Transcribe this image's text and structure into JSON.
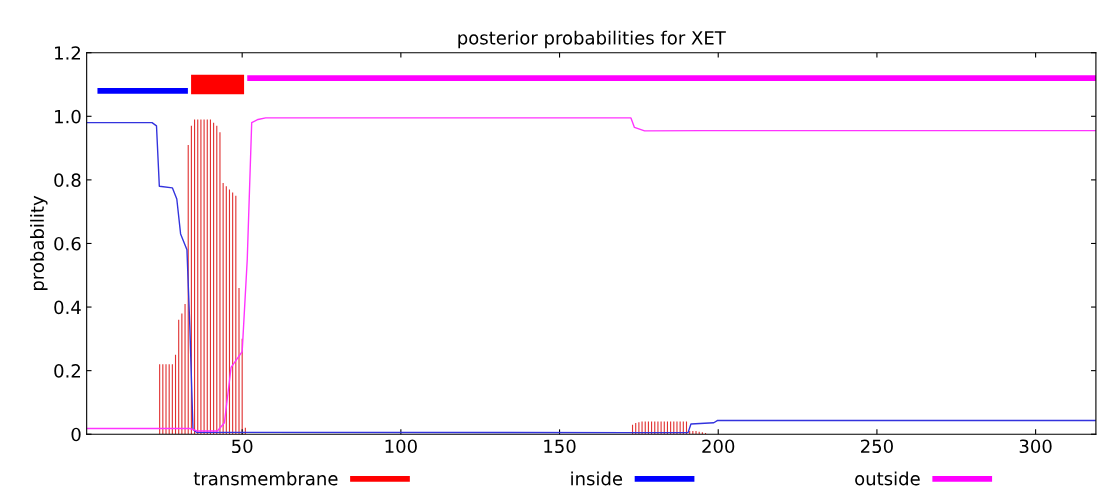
{
  "chart_data": {
    "type": "line",
    "title": "posterior probabilities for XET",
    "ylabel": "probability",
    "xlim": [
      1,
      319
    ],
    "xticks": [
      50,
      100,
      150,
      200,
      250,
      300
    ],
    "ylim": [
      0,
      1.2
    ],
    "yticks": [
      0,
      0.2,
      0.4,
      0.6,
      0.8,
      {
        "value": 1,
        "label": "1.0"
      },
      1.2
    ],
    "legend": "bottom",
    "grid": false,
    "series": [
      {
        "name": "transmembrane",
        "color": "#ff0000",
        "x": [
          33.9,
          50.6
        ],
        "values": [
          1.1,
          1.1
        ]
      },
      {
        "name": "inside",
        "color": "#0000ff",
        "x": [
          4.4,
          32.9
        ],
        "values": [
          1.08,
          1.08
        ]
      },
      {
        "name": "outside",
        "color": "#ff00ff",
        "x": [
          51.6,
          319
        ],
        "values": [
          1.12,
          1.12
        ]
      },
      {
        "type": "bar",
        "color": "#e03030",
        "x": [
          24,
          25,
          26,
          27,
          28,
          29,
          30,
          31,
          32,
          33,
          34,
          35,
          36,
          37,
          38,
          39,
          40,
          41,
          42,
          43,
          44,
          45,
          46,
          47,
          48,
          49,
          50,
          51,
          173,
          174,
          175,
          176,
          177,
          178,
          179,
          180,
          181,
          182,
          183,
          184,
          185,
          186,
          187,
          188,
          189,
          190,
          191,
          192,
          193,
          194,
          195,
          196
        ],
        "values": [
          0.22,
          0.22,
          0.22,
          0.22,
          0.22,
          0.25,
          0.36,
          0.38,
          0.41,
          0.91,
          0.97,
          0.99,
          0.99,
          0.99,
          0.99,
          0.99,
          0.99,
          0.98,
          0.97,
          0.95,
          0.79,
          0.78,
          0.77,
          0.76,
          0.75,
          0.46,
          0.3,
          0.02,
          0.03,
          0.035,
          0.038,
          0.04,
          0.04,
          0.04,
          0.04,
          0.04,
          0.04,
          0.04,
          0.04,
          0.04,
          0.04,
          0.04,
          0.04,
          0.04,
          0.04,
          0.04,
          0.01,
          0.01,
          0.01,
          0.008,
          0.006,
          0.004
        ]
      },
      {
        "color": "#3333dd",
        "x": [
          1,
          21.6,
          23,
          23.9,
          28,
          29.4,
          30.6,
          32.6,
          33.5,
          34.5,
          35.6,
          172,
          190.5,
          191.4,
          198.6,
          199.7,
          319
        ],
        "values": [
          0.98,
          0.98,
          0.97,
          0.78,
          0.775,
          0.74,
          0.63,
          0.58,
          0.34,
          0.015,
          0.006,
          0.005,
          0.005,
          0.032,
          0.036,
          0.043,
          0.043
        ]
      },
      {
        "color": "#ff33ff",
        "x": [
          1,
          33.5,
          36,
          42.2,
          44.4,
          46.5,
          50,
          51.6,
          53,
          55,
          57.4,
          172.5,
          173.6,
          176.8,
          195,
          319
        ],
        "values": [
          0.018,
          0.018,
          0.01,
          0.01,
          0.036,
          0.21,
          0.26,
          0.55,
          0.98,
          0.99,
          0.995,
          0.995,
          0.965,
          0.954,
          0.955,
          0.955
        ]
      }
    ]
  }
}
